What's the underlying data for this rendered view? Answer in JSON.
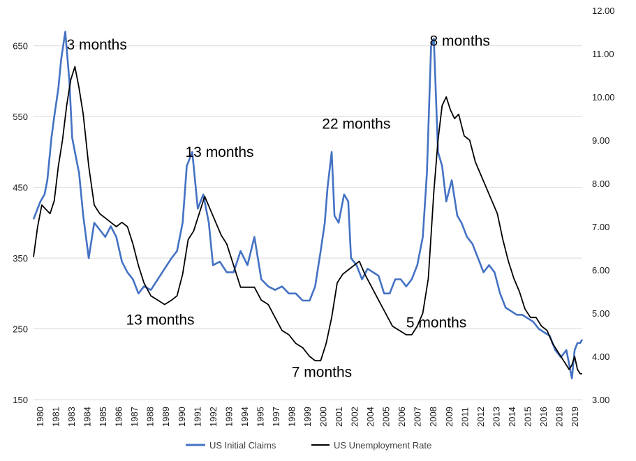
{
  "chart_data": {
    "type": "line",
    "title": "",
    "xlabel": "",
    "ylabel_left": "",
    "ylabel_right": "",
    "xlim": [
      1980.0,
      2019.75
    ],
    "ylim_left": [
      150,
      700
    ],
    "ylim_right": [
      3.0,
      12.0
    ],
    "left_ticks": [
      "150",
      "250",
      "350",
      "450",
      "550",
      "650"
    ],
    "right_ticks": [
      "3.00",
      "4.00",
      "5.00",
      "6.00",
      "7.00",
      "8.00",
      "9.00",
      "10.00",
      "11.00",
      "12.00"
    ],
    "x_tick_labels": [
      "1980",
      "1981",
      "1983",
      "1984",
      "1985",
      "1986",
      "1987",
      "1988",
      "1989",
      "1990",
      "1991",
      "1992",
      "1993",
      "1994",
      "1995",
      "1997",
      "1998",
      "1999",
      "2000",
      "2001",
      "2002",
      "2004",
      "2005",
      "2006",
      "2007",
      "2008",
      "2009",
      "2011",
      "2012",
      "2013",
      "2014",
      "2015",
      "2016",
      "2018",
      "2019"
    ],
    "gridlines": true,
    "legend_position": "bottom",
    "series": [
      {
        "name": "US Initial Claims",
        "axis": "left",
        "color": "#4472c4",
        "x": [
          1980.0,
          1980.3,
          1980.5,
          1980.8,
          1981.0,
          1981.3,
          1981.5,
          1981.8,
          1982.0,
          1982.3,
          1982.6,
          1982.8,
          1983.0,
          1983.3,
          1983.6,
          1984.0,
          1984.4,
          1984.8,
          1985.2,
          1985.6,
          1986.0,
          1986.4,
          1986.8,
          1987.2,
          1987.6,
          1988.0,
          1988.5,
          1989.0,
          1989.5,
          1990.0,
          1990.4,
          1990.8,
          1991.1,
          1991.5,
          1991.9,
          1992.3,
          1992.7,
          1993.0,
          1993.5,
          1994.0,
          1994.5,
          1995.0,
          1995.5,
          1996.0,
          1996.5,
          1997.0,
          1997.5,
          1998.0,
          1998.5,
          1999.0,
          1999.5,
          2000.0,
          2000.4,
          2000.8,
          2001.1,
          2001.3,
          2001.6,
          2001.8,
          2002.1,
          2002.5,
          2002.8,
          2003.0,
          2003.4,
          2003.8,
          2004.2,
          2004.6,
          2005.0,
          2005.4,
          2005.8,
          2006.2,
          2006.6,
          2007.0,
          2007.4,
          2007.8,
          2008.2,
          2008.5,
          2008.8,
          2009.0,
          2009.3,
          2009.6,
          2009.9,
          2010.3,
          2010.7,
          2011.0,
          2011.4,
          2011.8,
          2012.2,
          2012.6,
          2013.0,
          2013.4,
          2013.8,
          2014.2,
          2014.6,
          2015.0,
          2015.4,
          2015.8,
          2016.2,
          2016.6,
          2017.0,
          2017.4,
          2017.8,
          2018.2,
          2018.6,
          2019.0,
          2019.2,
          2019.4,
          2019.6,
          2019.75
        ],
        "values": [
          405,
          420,
          430,
          440,
          460,
          520,
          550,
          590,
          630,
          670,
          600,
          520,
          500,
          470,
          410,
          350,
          400,
          390,
          380,
          395,
          380,
          345,
          330,
          320,
          300,
          310,
          305,
          320,
          335,
          350,
          360,
          400,
          480,
          500,
          420,
          440,
          400,
          340,
          345,
          330,
          330,
          360,
          340,
          380,
          320,
          310,
          305,
          310,
          300,
          300,
          290,
          290,
          310,
          360,
          400,
          450,
          500,
          410,
          400,
          440,
          430,
          350,
          340,
          320,
          335,
          330,
          325,
          300,
          300,
          320,
          320,
          310,
          320,
          340,
          380,
          470,
          650,
          660,
          500,
          480,
          430,
          460,
          410,
          400,
          380,
          370,
          350,
          330,
          340,
          330,
          300,
          280,
          275,
          270,
          270,
          265,
          260,
          250,
          245,
          240,
          220,
          210,
          220,
          180,
          220,
          230,
          230,
          235
        ]
      },
      {
        "name": "US Unemployment Rate",
        "axis": "right",
        "color": "#000000",
        "x": [
          1980.0,
          1980.3,
          1980.6,
          1980.9,
          1981.2,
          1981.5,
          1981.8,
          1982.1,
          1982.4,
          1982.7,
          1983.0,
          1983.3,
          1983.6,
          1984.0,
          1984.4,
          1984.8,
          1985.2,
          1985.6,
          1986.0,
          1986.4,
          1986.8,
          1987.2,
          1987.6,
          1988.0,
          1988.5,
          1989.0,
          1989.5,
          1990.0,
          1990.4,
          1990.8,
          1991.2,
          1991.6,
          1992.0,
          1992.4,
          1992.8,
          1993.2,
          1993.6,
          1994.0,
          1994.5,
          1995.0,
          1995.5,
          1996.0,
          1996.5,
          1997.0,
          1997.5,
          1998.0,
          1998.5,
          1999.0,
          1999.5,
          2000.0,
          2000.4,
          2000.8,
          2001.2,
          2001.6,
          2002.0,
          2002.4,
          2002.8,
          2003.2,
          2003.6,
          2004.0,
          2004.5,
          2005.0,
          2005.5,
          2006.0,
          2006.5,
          2007.0,
          2007.4,
          2007.8,
          2008.2,
          2008.6,
          2009.0,
          2009.3,
          2009.6,
          2009.9,
          2010.2,
          2010.5,
          2010.8,
          2011.2,
          2011.6,
          2012.0,
          2012.4,
          2012.8,
          2013.2,
          2013.6,
          2014.0,
          2014.4,
          2014.8,
          2015.2,
          2015.6,
          2016.0,
          2016.4,
          2016.8,
          2017.2,
          2017.6,
          2018.0,
          2018.4,
          2018.8,
          2019.0,
          2019.2,
          2019.4,
          2019.6,
          2019.75
        ],
        "values": [
          6.3,
          7.0,
          7.5,
          7.4,
          7.3,
          7.6,
          8.4,
          9.0,
          9.8,
          10.4,
          10.7,
          10.2,
          9.6,
          8.4,
          7.5,
          7.3,
          7.2,
          7.1,
          7.0,
          7.1,
          7.0,
          6.6,
          6.1,
          5.7,
          5.4,
          5.3,
          5.2,
          5.3,
          5.4,
          5.9,
          6.7,
          6.9,
          7.3,
          7.7,
          7.4,
          7.1,
          6.8,
          6.6,
          6.1,
          5.6,
          5.6,
          5.6,
          5.3,
          5.2,
          4.9,
          4.6,
          4.5,
          4.3,
          4.2,
          4.0,
          3.9,
          3.9,
          4.3,
          4.9,
          5.7,
          5.9,
          6.0,
          6.1,
          6.2,
          5.9,
          5.6,
          5.3,
          5.0,
          4.7,
          4.6,
          4.5,
          4.5,
          4.7,
          5.0,
          5.8,
          7.8,
          9.0,
          9.8,
          10.0,
          9.7,
          9.5,
          9.6,
          9.1,
          9.0,
          8.5,
          8.2,
          7.9,
          7.6,
          7.3,
          6.7,
          6.2,
          5.8,
          5.5,
          5.1,
          4.9,
          4.9,
          4.7,
          4.6,
          4.3,
          4.1,
          3.9,
          3.7,
          3.8,
          4.0,
          3.7,
          3.6,
          3.6
        ]
      }
    ],
    "annotations": [
      {
        "text": "3 months",
        "x": 1982.4,
        "axis": "left",
        "y": 645
      },
      {
        "text": "13 months",
        "x": 1991.0,
        "axis": "left",
        "y": 493
      },
      {
        "text": "22 months",
        "x": 2000.9,
        "axis": "left",
        "y": 533
      },
      {
        "text": "8 months",
        "x": 2008.7,
        "axis": "left",
        "y": 650
      },
      {
        "text": "13 months",
        "x": 1986.7,
        "axis": "left",
        "y": 256
      },
      {
        "text": "7 months",
        "x": 1998.7,
        "axis": "left",
        "y": 182
      },
      {
        "text": "5 months",
        "x": 2007.0,
        "axis": "left",
        "y": 252
      }
    ]
  }
}
